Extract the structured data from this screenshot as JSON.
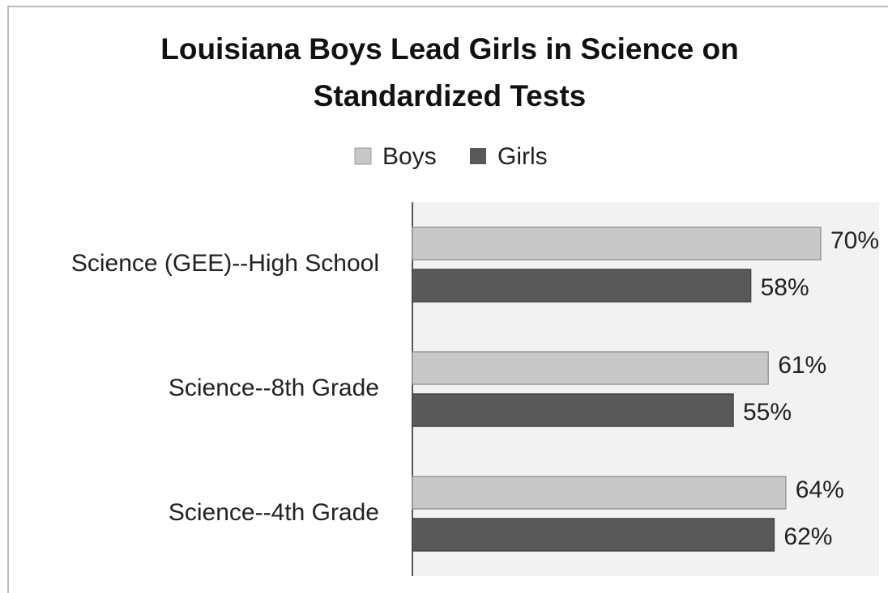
{
  "chart_data": {
    "type": "hbar",
    "title": "Louisiana Boys Lead Girls in Science on Standardized Tests",
    "categories": [
      "Science (GEE)--High School",
      "Science--8th Grade",
      "Science--4th Grade"
    ],
    "series": [
      {
        "name": "Boys",
        "color": "#c8c8c8",
        "values": [
          70,
          61,
          64
        ],
        "value_labels": [
          "70%",
          "61%",
          "64%"
        ]
      },
      {
        "name": "Girls",
        "color": "#595959",
        "values": [
          58,
          55,
          62
        ],
        "value_labels": [
          "58%",
          "55%",
          "62%"
        ]
      }
    ],
    "xlim": [
      0,
      80
    ]
  }
}
